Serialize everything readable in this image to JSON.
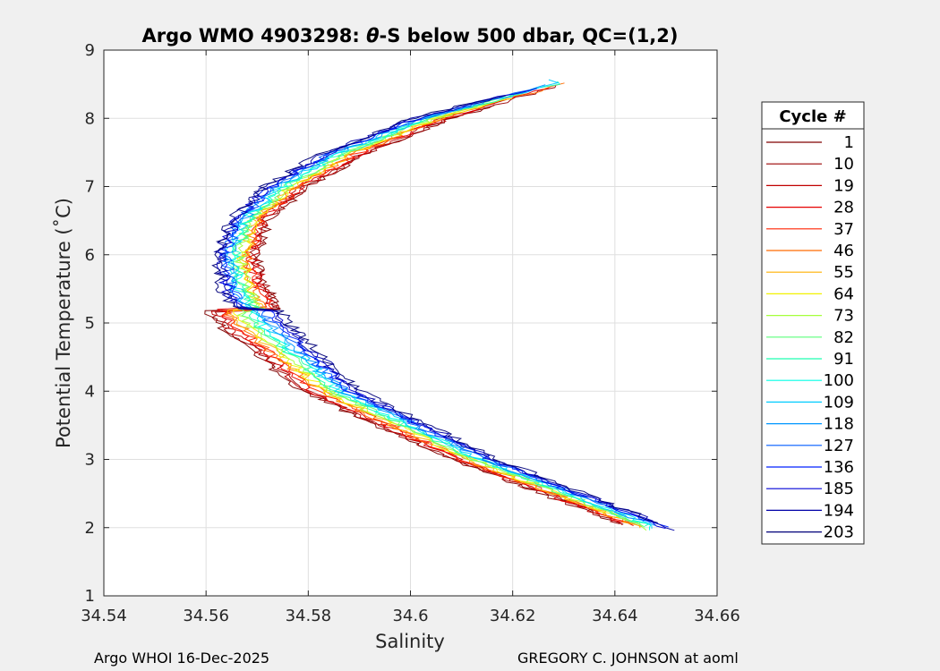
{
  "footer": {
    "left": "Argo WHOI 16-Dec-2025",
    "right": "GREGORY C. JOHNSON at aoml"
  },
  "chart_data": {
    "type": "line",
    "title_prefix": "Argo WMO 4903298: ",
    "title_theta": "θ",
    "title_suffix": "-S below 500 dbar,  QC=(1,2)",
    "xlabel": "Salinity",
    "ylabel": "Potential Temperature (˚C)",
    "xlim": [
      34.54,
      34.66
    ],
    "ylim": [
      1,
      9
    ],
    "xticks": [
      "34.54",
      "34.56",
      "34.58",
      "34.6",
      "34.62",
      "34.64",
      "34.66"
    ],
    "yticks": [
      "1",
      "2",
      "3",
      "4",
      "5",
      "6",
      "7",
      "8",
      "9"
    ],
    "grid": true,
    "legend_title": "Cycle #",
    "legend_position": "outside-right",
    "series": [
      {
        "name": "1",
        "color": "#800000"
      },
      {
        "name": "10",
        "color": "#9a0000"
      },
      {
        "name": "19",
        "color": "#c00000"
      },
      {
        "name": "28",
        "color": "#e60000"
      },
      {
        "name": "37",
        "color": "#ff2200"
      },
      {
        "name": "46",
        "color": "#ff6a00"
      },
      {
        "name": "55",
        "color": "#ffb000"
      },
      {
        "name": "64",
        "color": "#f2f200"
      },
      {
        "name": "73",
        "color": "#a6ff3c"
      },
      {
        "name": "82",
        "color": "#5cff7a"
      },
      {
        "name": "91",
        "color": "#1effb0"
      },
      {
        "name": "100",
        "color": "#00ffe6"
      },
      {
        "name": "109",
        "color": "#00ccff"
      },
      {
        "name": "118",
        "color": "#0096ff"
      },
      {
        "name": "127",
        "color": "#005cff"
      },
      {
        "name": "136",
        "color": "#0022ff"
      },
      {
        "name": "185",
        "color": "#0000d6"
      },
      {
        "name": "194",
        "color": "#0000a8"
      },
      {
        "name": "203",
        "color": "#00007a"
      }
    ],
    "envelope": {
      "theta": [
        2.0,
        3.0,
        4.0,
        5.0,
        5.5,
        6.0,
        6.5,
        7.0,
        7.5,
        8.0,
        8.5
      ],
      "inner_salinity": [
        34.643,
        34.608,
        34.579,
        34.562,
        34.557,
        34.557,
        34.56,
        34.566,
        34.577,
        34.595,
        34.625
      ],
      "outer_salinity": [
        34.651,
        34.617,
        34.59,
        34.576,
        34.572,
        34.57,
        34.572,
        34.58,
        34.592,
        34.608,
        34.63
      ]
    }
  }
}
